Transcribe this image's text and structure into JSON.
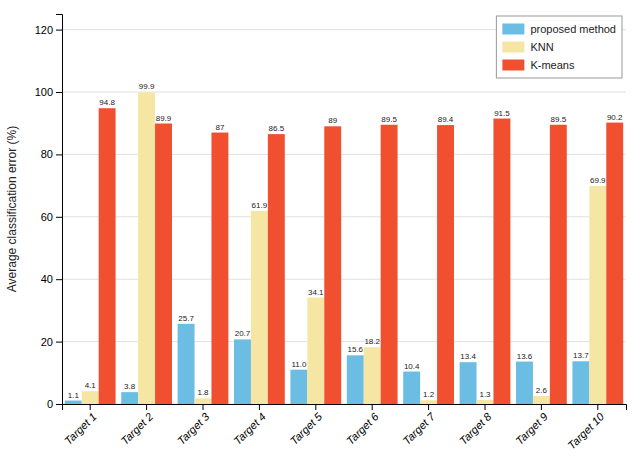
{
  "chart_data": {
    "type": "bar",
    "y_label": "Average classification error (%)",
    "categories": [
      "Target 1",
      "Target 2",
      "Target 3",
      "Target 4",
      "Target 5",
      "Target 6",
      "Target 7",
      "Target 8",
      "Target 9",
      "Target 10"
    ],
    "series": [
      {
        "name": "proposed method",
        "color": "#6BBDE3",
        "values": [
          1.1,
          3.8,
          25.7,
          20.7,
          11.0,
          15.6,
          10.4,
          13.4,
          13.6,
          13.7
        ],
        "value_labels": [
          "1.1",
          "3.8",
          "25.7",
          "20.7",
          "11.0",
          "15.6",
          "10.4",
          "13.4",
          "13.6",
          "13.7"
        ]
      },
      {
        "name": "KNN",
        "color": "#F5E6A3",
        "values": [
          4.1,
          99.9,
          1.8,
          61.9,
          34.1,
          18.2,
          1.2,
          1.3,
          2.6,
          69.9
        ],
        "value_labels": [
          "4.1",
          "99.9",
          "1.8",
          "61.9",
          "34.1",
          "18.2",
          "1.2",
          "1.3",
          "2.6",
          "69.9"
        ]
      },
      {
        "name": "K-means",
        "color": "#F05030",
        "values": [
          94.8,
          89.9,
          87.0,
          86.5,
          89.0,
          89.5,
          89.4,
          91.5,
          89.5,
          90.2
        ],
        "value_labels": [
          "94.8",
          "89.9",
          "87",
          "86.5",
          "89",
          "89.5",
          "89.4",
          "91.5",
          "89.5",
          "90.2"
        ]
      }
    ],
    "ylim": [
      0,
      125
    ],
    "yticks": [
      0,
      20,
      40,
      60,
      80,
      100,
      120
    ],
    "grid": true,
    "legend": "upper right",
    "data_labels": true
  }
}
